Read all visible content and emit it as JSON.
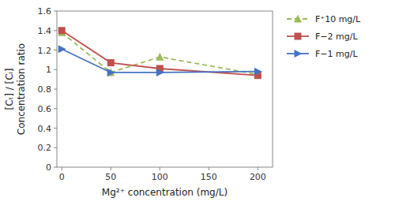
{
  "chart_data": {
    "type": "line",
    "x_label": "Mg²⁺ concentration (mg/L)",
    "y_label": [
      "[Cₜ] / [Cᵢ]",
      "Concentration ratio"
    ],
    "x": [
      0,
      50,
      100,
      200
    ],
    "series": [
      {
        "name": "F⁺10 mg/L",
        "color": "#9BBB59",
        "marker": "triangle-up",
        "line_style": "dashed",
        "values": [
          1.38,
          0.97,
          1.13,
          0.95
        ]
      },
      {
        "name": "F−2 mg/L",
        "color": "#C0504D",
        "marker": "square",
        "line_style": "solid",
        "values": [
          1.4,
          1.07,
          1.01,
          0.94
        ]
      },
      {
        "name": "F−1 mg/L",
        "color": "#4472C4",
        "marker": "triangle-right",
        "line_style": "solid",
        "values": [
          1.21,
          0.97,
          0.97,
          0.98
        ]
      }
    ],
    "xlim": [
      -5,
      215
    ],
    "ylim": [
      0,
      1.6
    ],
    "xticks": [
      0,
      50,
      100,
      150,
      200
    ],
    "yticks": [
      0,
      0.2,
      0.4,
      0.6,
      0.8,
      1.0,
      1.2,
      1.4,
      1.6
    ],
    "grid": false,
    "legend": "right"
  }
}
